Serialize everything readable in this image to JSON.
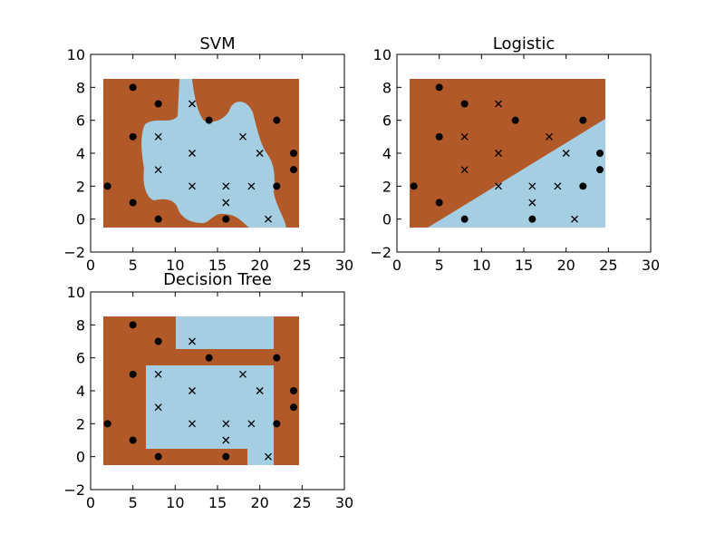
{
  "colors": {
    "class_a": "#b15928",
    "class_b": "#a6cee3",
    "axes": "#000000",
    "background": "#ffffff"
  },
  "chart_data": [
    {
      "type": "scatter",
      "title": "SVM",
      "xlabel": "",
      "ylabel": "",
      "xlim": [
        0,
        30
      ],
      "ylim": [
        -2,
        10
      ],
      "xticks": [
        "0",
        "5",
        "10",
        "15",
        "20",
        "25",
        "30"
      ],
      "yticks": [
        "−2",
        "0",
        "2",
        "4",
        "6",
        "8",
        "10"
      ],
      "grid": false,
      "region_extent": {
        "x": [
          1.5,
          24.5
        ],
        "y": [
          -0.5,
          8.5
        ]
      },
      "decision_boundary": "nonlinear (RBF)"
    },
    {
      "type": "scatter",
      "title": "Logistic",
      "xlabel": "",
      "ylabel": "",
      "xlim": [
        0,
        30
      ],
      "ylim": [
        -2,
        10
      ],
      "xticks": [
        "0",
        "5",
        "10",
        "15",
        "20",
        "25",
        "30"
      ],
      "yticks": [
        "−2",
        "0",
        "2",
        "4",
        "6",
        "8",
        "10"
      ],
      "grid": false,
      "region_extent": {
        "x": [
          1.5,
          24.5
        ],
        "y": [
          -0.5,
          8.5
        ]
      },
      "decision_boundary": "linear"
    },
    {
      "type": "scatter",
      "title": "Decision Tree",
      "xlabel": "",
      "ylabel": "",
      "xlim": [
        0,
        30
      ],
      "ylim": [
        -2,
        10
      ],
      "xticks": [
        "0",
        "5",
        "10",
        "15",
        "20",
        "25",
        "30"
      ],
      "yticks": [
        "−2",
        "0",
        "2",
        "4",
        "6",
        "8",
        "10"
      ],
      "grid": false,
      "region_extent": {
        "x": [
          1.5,
          24.5
        ],
        "y": [
          -0.5,
          8.5
        ]
      },
      "decision_boundary": "axis-aligned rectangles"
    }
  ],
  "points": {
    "dots": [
      [
        2,
        2
      ],
      [
        5,
        8
      ],
      [
        5,
        5
      ],
      [
        5,
        1
      ],
      [
        8,
        7
      ],
      [
        8,
        0
      ],
      [
        14,
        6
      ],
      [
        16,
        0
      ],
      [
        22,
        6
      ],
      [
        22,
        2
      ],
      [
        24,
        4
      ],
      [
        24,
        3
      ]
    ],
    "crosses": [
      [
        8,
        5
      ],
      [
        8,
        3
      ],
      [
        12,
        7
      ],
      [
        12,
        4
      ],
      [
        12,
        2
      ],
      [
        16,
        2
      ],
      [
        16,
        1
      ],
      [
        18,
        5
      ],
      [
        19,
        2
      ],
      [
        20,
        4
      ],
      [
        21,
        0
      ]
    ]
  }
}
